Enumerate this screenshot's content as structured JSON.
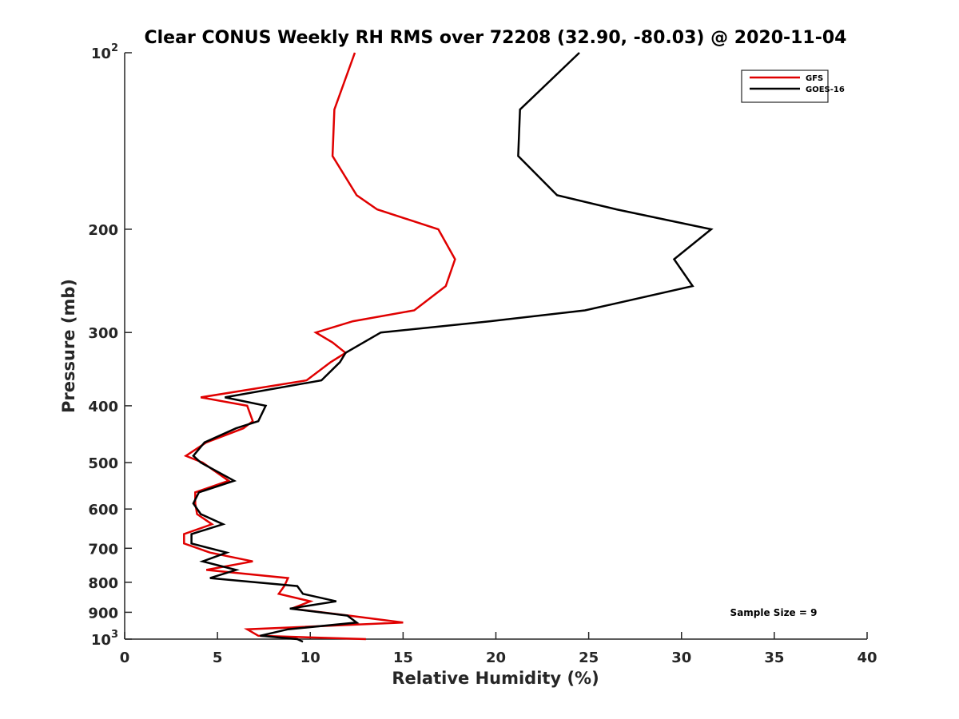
{
  "chart_data": {
    "type": "line",
    "title": "Clear CONUS Weekly RH RMS over 72208 (32.90, -80.03) @ 2020-11-04",
    "xlabel": "Relative Humidity (%)",
    "ylabel": "Pressure (mb)",
    "xlim": [
      0,
      40
    ],
    "ylim": [
      100,
      1000
    ],
    "y_scale": "log",
    "y_reversed": true,
    "x_ticks": [
      0,
      5,
      10,
      15,
      20,
      25,
      30,
      35,
      40
    ],
    "x_tick_labels": [
      "0",
      "5",
      "10",
      "15",
      "20",
      "25",
      "30",
      "35",
      "40"
    ],
    "y_ticks": [
      100,
      200,
      300,
      400,
      500,
      600,
      700,
      800,
      900,
      1000
    ],
    "y_tick_labels": [
      "10^2",
      "200",
      "300",
      "400",
      "500",
      "600",
      "700",
      "800",
      "900",
      "10^3"
    ],
    "grid": false,
    "legend_position": "top-right",
    "series": [
      {
        "name": "GFS",
        "color": "#e00000",
        "points": [
          [
            12.4,
            100
          ],
          [
            11.3,
            125
          ],
          [
            11.2,
            150
          ],
          [
            12.5,
            175
          ],
          [
            13.6,
            185
          ],
          [
            16.9,
            200
          ],
          [
            17.8,
            225
          ],
          [
            17.3,
            250
          ],
          [
            15.6,
            275
          ],
          [
            12.3,
            287
          ],
          [
            10.3,
            300
          ],
          [
            11.2,
            312
          ],
          [
            11.9,
            325
          ],
          [
            11.1,
            337
          ],
          [
            9.8,
            362
          ],
          [
            4.1,
            387
          ],
          [
            6.6,
            400
          ],
          [
            6.9,
            425
          ],
          [
            6.4,
            437
          ],
          [
            4.4,
            462
          ],
          [
            3.3,
            487
          ],
          [
            4.2,
            500
          ],
          [
            5.6,
            537
          ],
          [
            3.8,
            562
          ],
          [
            3.8,
            587
          ],
          [
            3.9,
            612
          ],
          [
            4.7,
            637
          ],
          [
            3.2,
            662
          ],
          [
            3.2,
            687
          ],
          [
            4.6,
            712
          ],
          [
            6.9,
            737
          ],
          [
            4.4,
            762
          ],
          [
            8.8,
            787
          ],
          [
            8.6,
            812
          ],
          [
            8.3,
            837
          ],
          [
            10.0,
            862
          ],
          [
            9.0,
            887
          ],
          [
            12.1,
            912
          ],
          [
            15.0,
            937
          ],
          [
            6.6,
            962
          ],
          [
            7.2,
            987
          ],
          [
            13.0,
            1000
          ]
        ]
      },
      {
        "name": "GOES-16",
        "color": "#000000",
        "points": [
          [
            24.5,
            100
          ],
          [
            21.3,
            125
          ],
          [
            21.2,
            150
          ],
          [
            23.3,
            175
          ],
          [
            26.5,
            185
          ],
          [
            31.6,
            200
          ],
          [
            29.6,
            225
          ],
          [
            30.6,
            250
          ],
          [
            24.8,
            275
          ],
          [
            19.7,
            287
          ],
          [
            13.8,
            300
          ],
          [
            11.9,
            325
          ],
          [
            11.6,
            337
          ],
          [
            10.6,
            362
          ],
          [
            5.4,
            387
          ],
          [
            7.6,
            400
          ],
          [
            7.2,
            425
          ],
          [
            6.0,
            437
          ],
          [
            4.3,
            462
          ],
          [
            3.7,
            487
          ],
          [
            4.1,
            500
          ],
          [
            5.9,
            537
          ],
          [
            4.0,
            562
          ],
          [
            3.7,
            587
          ],
          [
            4.1,
            612
          ],
          [
            5.3,
            637
          ],
          [
            3.6,
            662
          ],
          [
            3.6,
            687
          ],
          [
            5.5,
            712
          ],
          [
            4.2,
            737
          ],
          [
            6.0,
            762
          ],
          [
            4.6,
            787
          ],
          [
            9.3,
            812
          ],
          [
            9.6,
            837
          ],
          [
            11.4,
            862
          ],
          [
            8.9,
            887
          ],
          [
            12.0,
            912
          ],
          [
            12.5,
            937
          ],
          [
            8.8,
            962
          ],
          [
            7.3,
            987
          ],
          [
            9.3,
            1000
          ],
          [
            9.6,
            1010
          ]
        ]
      }
    ],
    "annotations": [
      {
        "text": "Sample Size = 9"
      }
    ]
  }
}
